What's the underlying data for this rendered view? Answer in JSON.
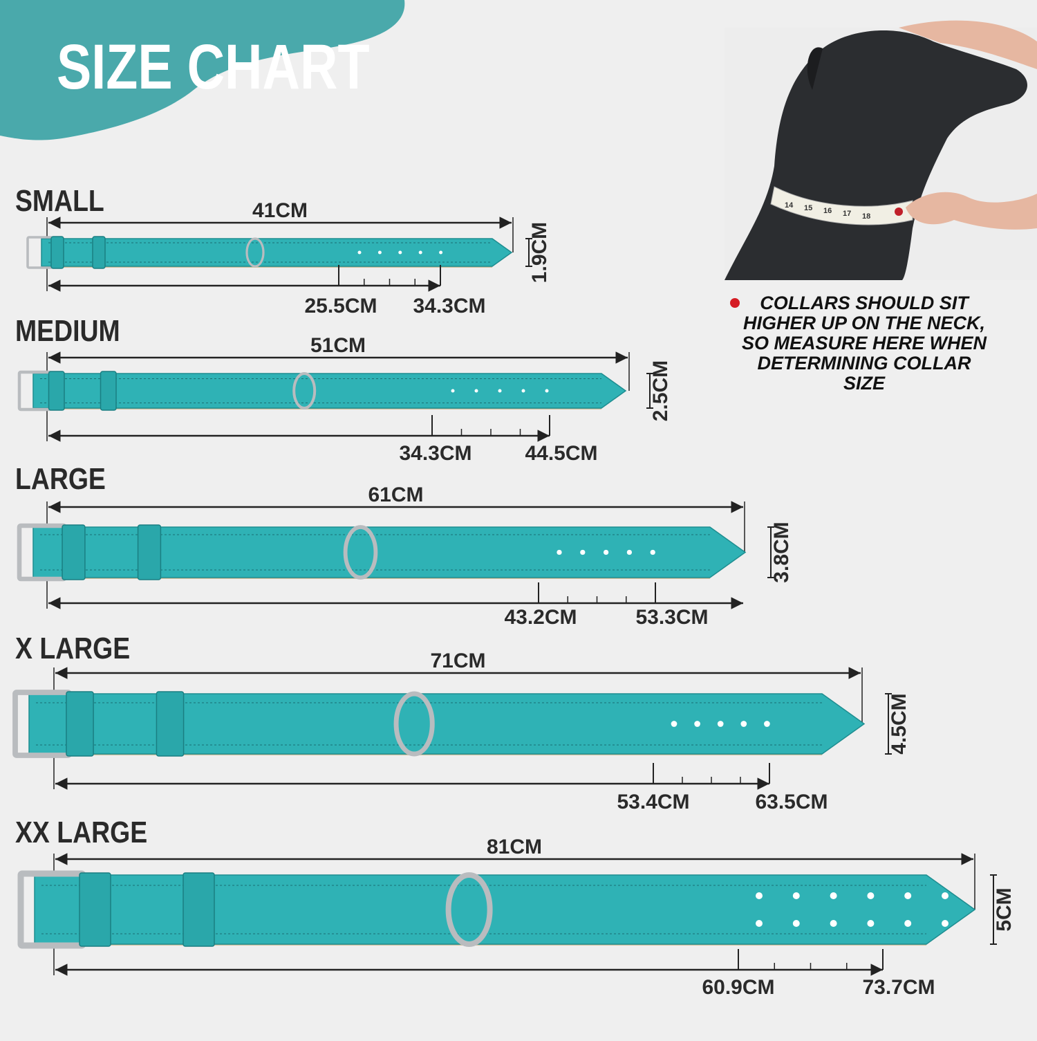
{
  "header": {
    "title": "SIZE CHART"
  },
  "sizes": [
    {
      "name": "SMALL",
      "length": "41CM",
      "width": "1.9CM",
      "range": [
        "25.5CM",
        "34.3CM"
      ]
    },
    {
      "name": "MEDIUM",
      "length": "51CM",
      "width": "2.5CM",
      "range": [
        "34.3CM",
        "44.5CM"
      ]
    },
    {
      "name": "LARGE",
      "length": "61CM",
      "width": "3.8CM",
      "range": [
        "43.2CM",
        "53.3CM"
      ]
    },
    {
      "name": "X LARGE",
      "length": "71CM",
      "width": "4.5CM",
      "range": [
        "53.4CM",
        "63.5CM"
      ]
    },
    {
      "name": "XX LARGE",
      "length": "81CM",
      "width": "5CM",
      "range": [
        "60.9CM",
        "73.7CM"
      ]
    }
  ],
  "note": {
    "lines": [
      "COLLARS SHOULD SIT",
      "HIGHER UP ON THE NECK,",
      "SO MEASURE HERE WHEN",
      "DETERMINING COLLAR",
      "SIZE"
    ]
  },
  "tape": {
    "labels": [
      "14",
      "15",
      "16",
      "17",
      "18"
    ]
  }
}
